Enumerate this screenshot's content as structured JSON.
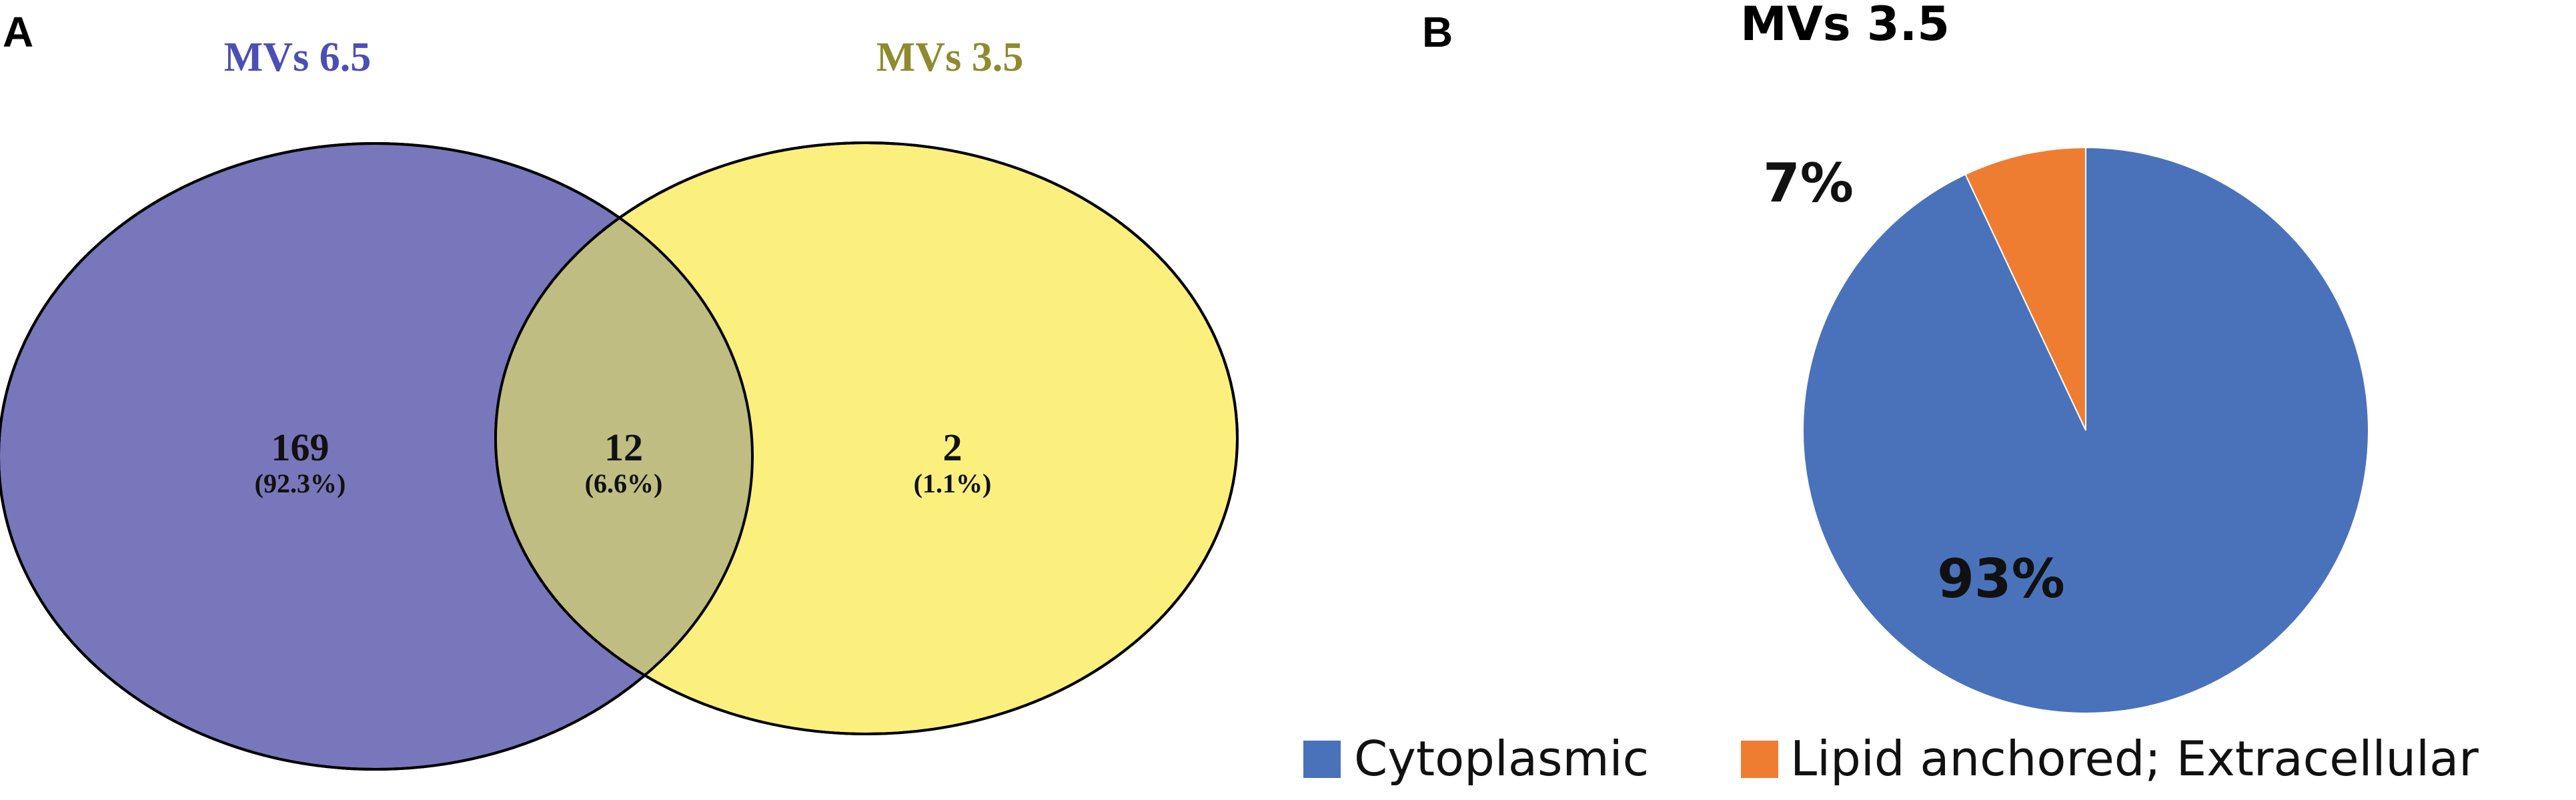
{
  "panels": {
    "a_label": "A",
    "b_label": "B"
  },
  "chart_data": [
    {
      "type": "venn",
      "sets": [
        {
          "name": "MVs 6.5",
          "color": "#7877bb",
          "title_color": "#4b4fb5"
        },
        {
          "name": "MVs 3.5",
          "color": "#fbf07e",
          "title_color": "#8f8a2e"
        }
      ],
      "overlap_color": "#bfbd81",
      "regions": [
        {
          "region": "MVs 6.5 only",
          "count": "169",
          "percent": "(92.3%)"
        },
        {
          "region": "MVs 6.5 ∩ MVs 3.5",
          "count": "12",
          "percent": "(6.6%)"
        },
        {
          "region": "MVs 3.5 only",
          "count": "2",
          "percent": "(1.1%)"
        }
      ]
    },
    {
      "type": "pie",
      "title": "MVs 3.5",
      "slices": [
        {
          "name": "Cytoplasmic",
          "value": 93,
          "label": "93%",
          "color": "#4a72bb"
        },
        {
          "name": "Lipid anchored; Extracellular",
          "value": 7,
          "label": "7%",
          "color": "#ee7d31"
        }
      ],
      "start": "12 o'clock, counter-clockwise from smallest slice",
      "legend": "bottom"
    }
  ]
}
